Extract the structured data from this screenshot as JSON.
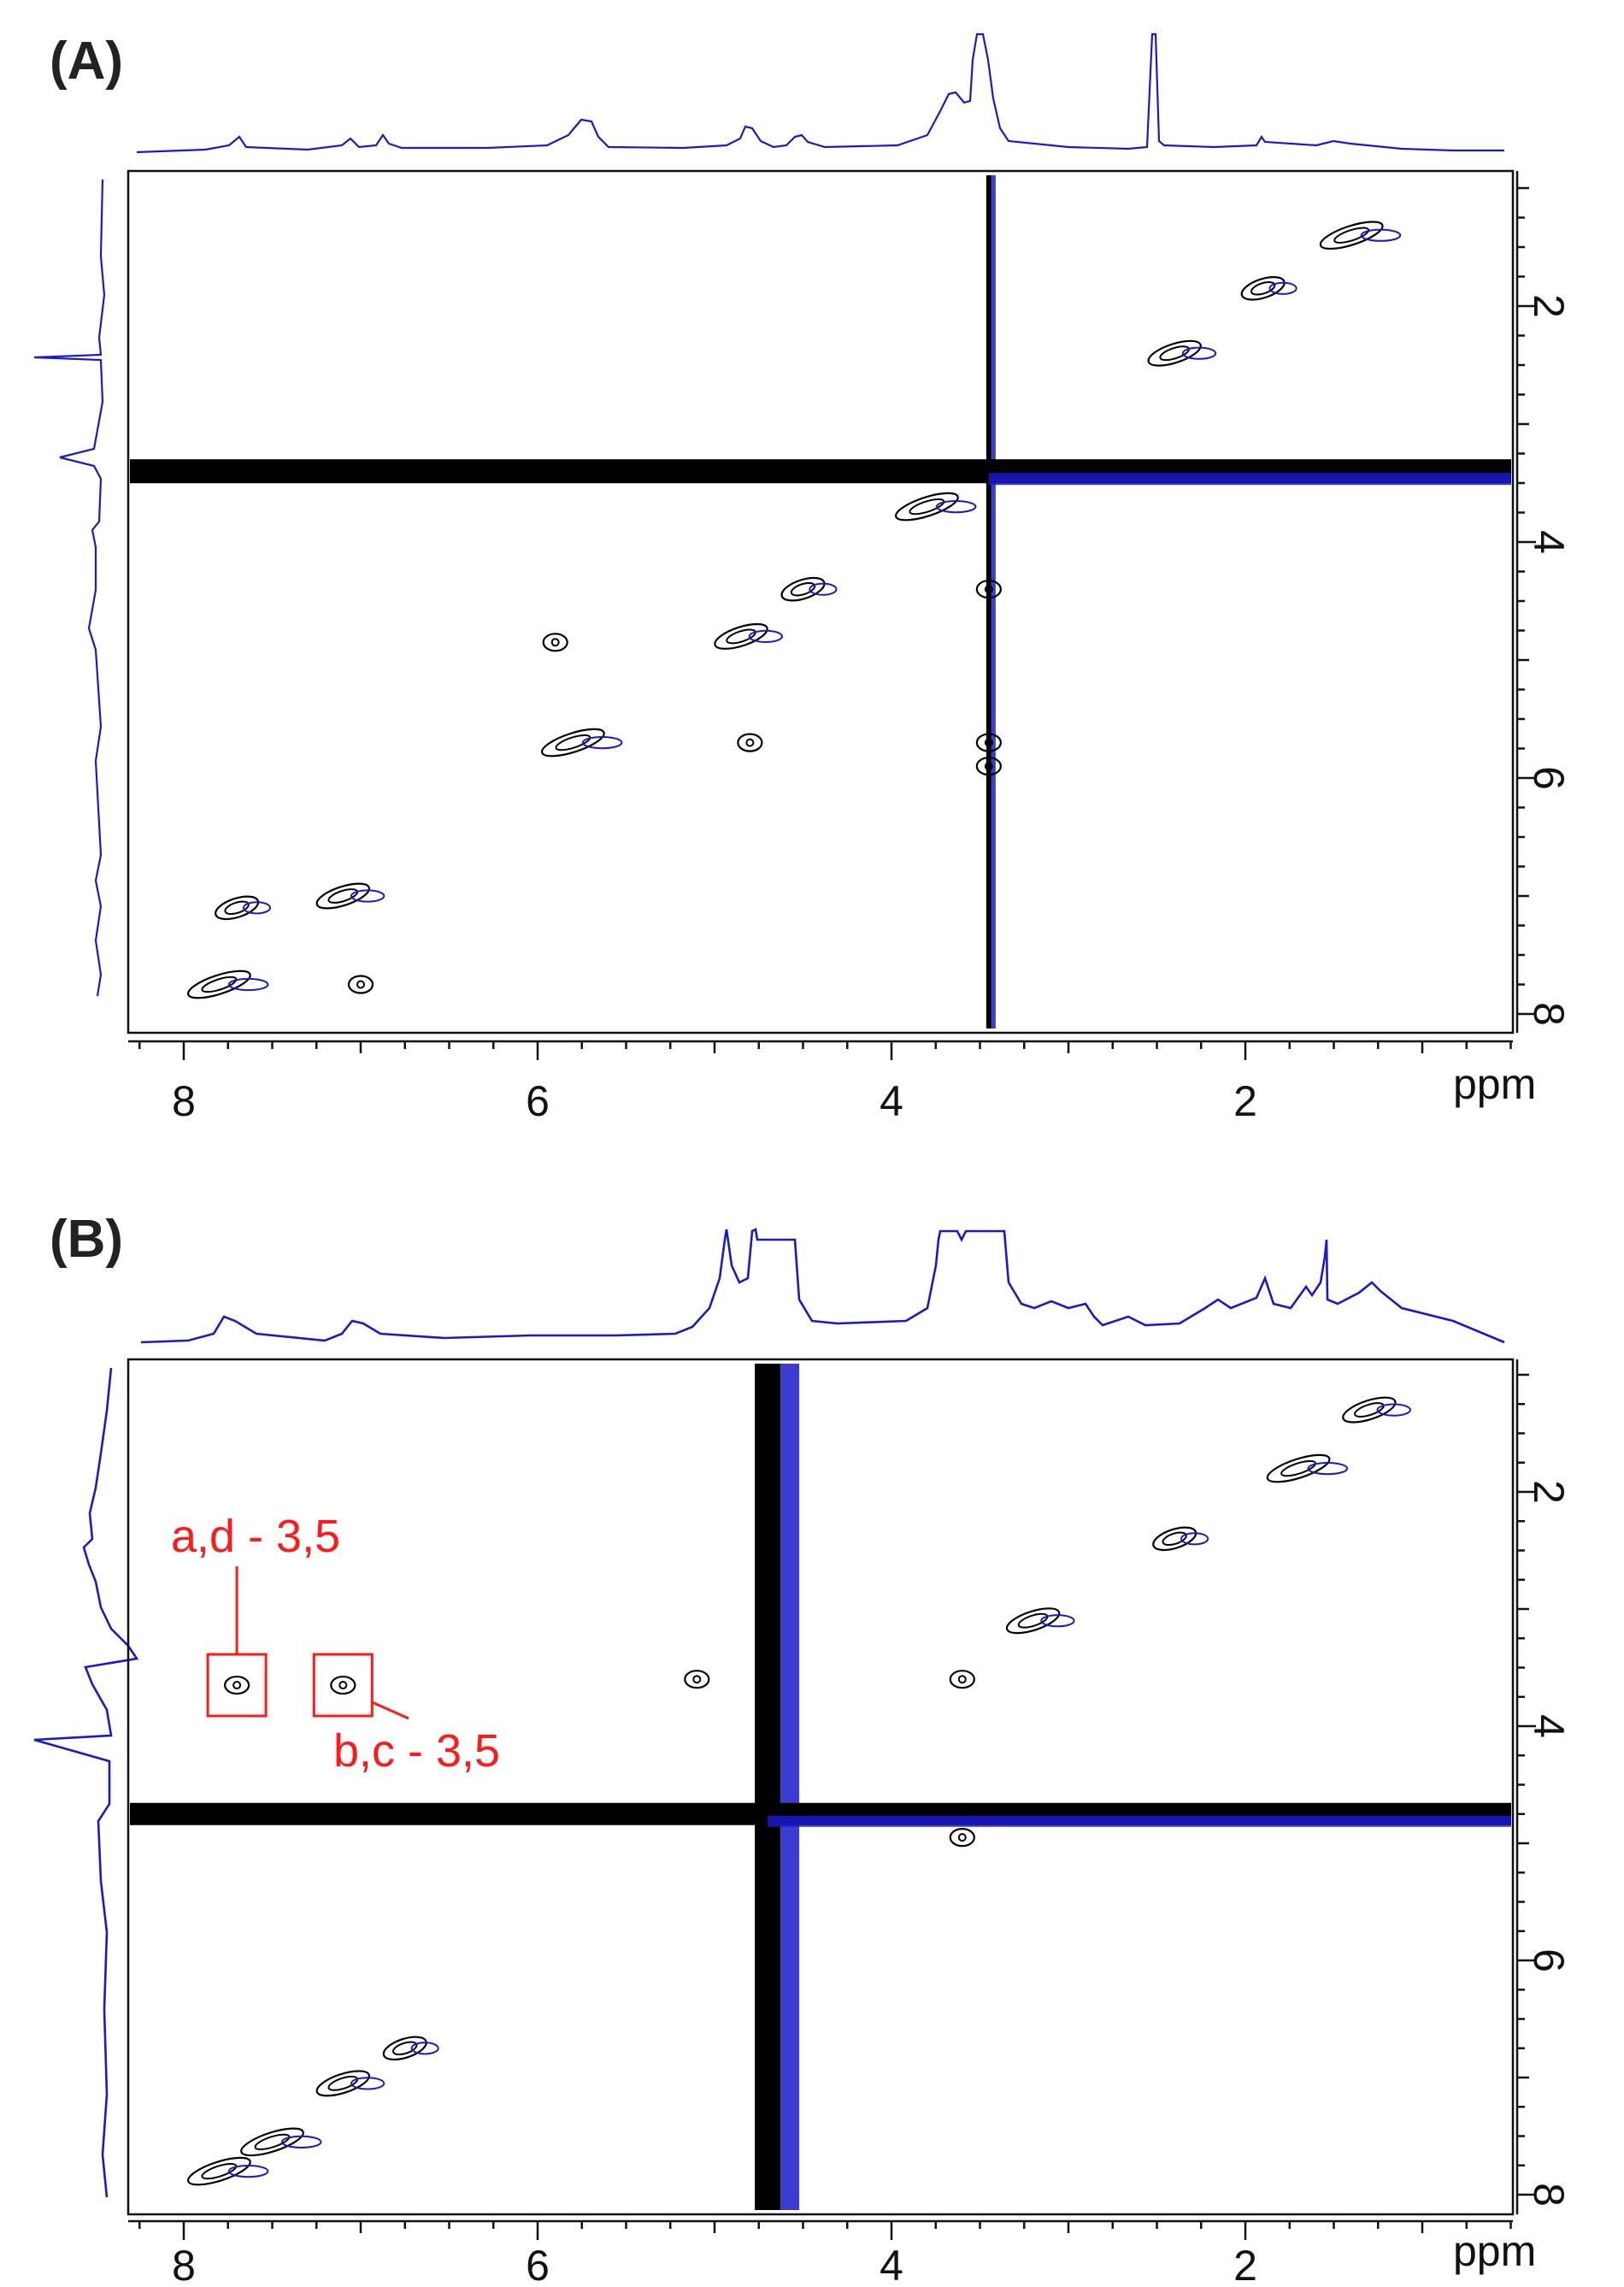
{
  "figure": {
    "panels": [
      {
        "id": "A",
        "label": "(A)",
        "x_ticks": [
          "8",
          "6",
          "4",
          "2"
        ],
        "y_ticks": [
          "2",
          "4",
          "6",
          "8"
        ],
        "x_unit": "ppm",
        "annotations": []
      },
      {
        "id": "B",
        "label": "(B)",
        "x_ticks": [
          "8",
          "6",
          "4",
          "2"
        ],
        "y_ticks": [
          "2",
          "4",
          "6",
          "8"
        ],
        "x_unit": "ppm",
        "annotations": [
          {
            "text": "a,d - 3,5",
            "box_x": 7.7,
            "box_y": 3.65
          },
          {
            "text": "b,c - 3,5",
            "box_x": 7.1,
            "box_y": 3.65
          }
        ]
      }
    ]
  },
  "colors": {
    "positive_contour": "#000000",
    "negative_contour": "#1a1acc",
    "projection": "#1a1acc",
    "annotation": "#ff1a1a"
  },
  "chart_data": [
    {
      "type": "heatmap",
      "title": "(A)",
      "xlabel": "ppm",
      "ylabel": "",
      "xlim": [
        8.35,
        0.35
      ],
      "ylim": [
        1.0,
        8.2
      ],
      "x_ticks": [
        8,
        6,
        4,
        2
      ],
      "y_ticks": [
        2,
        4,
        6,
        8
      ],
      "diagonal_peaks": [
        {
          "x": 7.8,
          "y": 7.75
        },
        {
          "x": 7.1,
          "y": 7.0
        },
        {
          "x": 7.7,
          "y": 7.1
        },
        {
          "x": 5.8,
          "y": 5.7
        },
        {
          "x": 4.85,
          "y": 4.8
        },
        {
          "x": 4.5,
          "y": 4.4
        },
        {
          "x": 3.8,
          "y": 3.7
        },
        {
          "x": 2.4,
          "y": 2.4
        },
        {
          "x": 1.9,
          "y": 1.85
        },
        {
          "x": 1.4,
          "y": 1.4
        }
      ],
      "cross_peaks": [
        {
          "x": 5.9,
          "y": 4.85
        },
        {
          "x": 3.45,
          "y": 4.4
        },
        {
          "x": 3.45,
          "y": 5.7
        },
        {
          "x": 3.45,
          "y": 5.9
        },
        {
          "x": 4.8,
          "y": 5.7
        },
        {
          "x": 7.0,
          "y": 7.75
        }
      ],
      "solvent_lines": {
        "vertical_x": 3.45,
        "horizontal_y": 3.4
      }
    },
    {
      "type": "heatmap",
      "title": "(B)",
      "xlabel": "ppm",
      "ylabel": "",
      "xlim": [
        8.35,
        0.35
      ],
      "ylim": [
        1.0,
        8.2
      ],
      "x_ticks": [
        8,
        6,
        4,
        2
      ],
      "y_ticks": [
        2,
        4,
        6,
        8
      ],
      "diagonal_peaks": [
        {
          "x": 7.8,
          "y": 7.8
        },
        {
          "x": 7.1,
          "y": 7.05
        },
        {
          "x": 6.75,
          "y": 6.75
        },
        {
          "x": 7.5,
          "y": 7.55
        },
        {
          "x": 3.2,
          "y": 3.1
        },
        {
          "x": 2.4,
          "y": 2.4
        },
        {
          "x": 1.7,
          "y": 1.8
        },
        {
          "x": 1.3,
          "y": 1.3
        }
      ],
      "cross_peaks": [
        {
          "x": 7.7,
          "y": 3.65
        },
        {
          "x": 7.1,
          "y": 3.65
        },
        {
          "x": 3.6,
          "y": 4.95
        },
        {
          "x": 3.6,
          "y": 3.6
        },
        {
          "x": 5.1,
          "y": 3.6
        }
      ],
      "solvent_lines": {
        "vertical_x": 4.7,
        "horizontal_y": 4.75
      }
    }
  ]
}
